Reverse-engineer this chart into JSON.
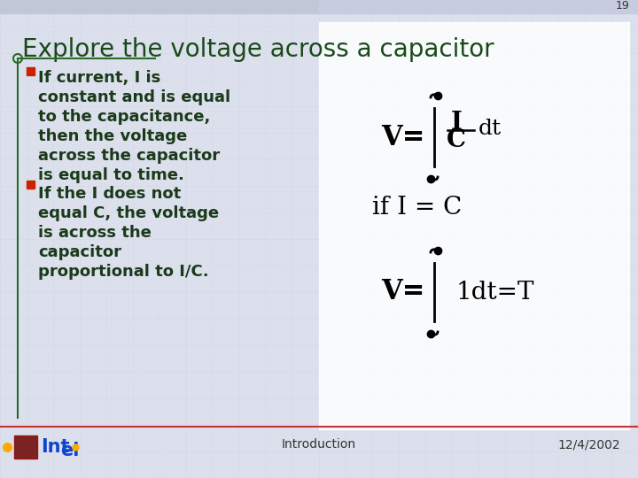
{
  "title": "Explore the voltage across a capacitor",
  "slide_number": "19",
  "bg_left_color": "#e8ecf0",
  "bg_right_color": "#f0f2f8",
  "title_color": "#1a4a1a",
  "title_fontsize": 20,
  "bullet_text_color": "#1a3a1a",
  "bullet1_lines": [
    "If current, I is",
    "constant and is equal",
    "to the capacitance,",
    "then the voltage",
    "across the capacitor",
    "is equal to time."
  ],
  "bullet2_lines": [
    "If the I does not",
    "equal C, the voltage",
    "is across the",
    "capacitor",
    "proportional to I/C."
  ],
  "bullet_color": "#cc2200",
  "text_fontsize": 13,
  "footer_left": "Introduction",
  "footer_right": "12/4/2002",
  "formula_text_color": "#000000",
  "grid_color": "#c8ccd8"
}
